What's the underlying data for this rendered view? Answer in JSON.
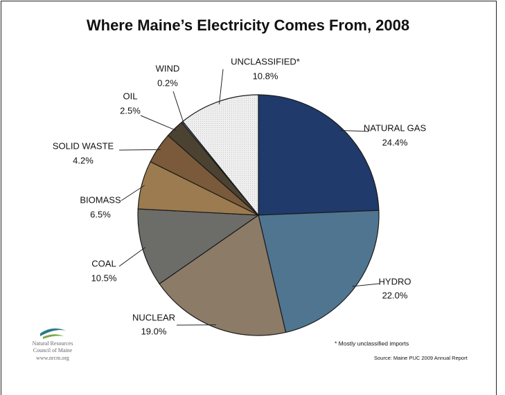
{
  "chart_data": {
    "type": "pie",
    "title": "Where Maine’s Electricity Comes From, 2008",
    "categories": [
      "NATURAL GAS",
      "HYDRO",
      "NUCLEAR",
      "COAL",
      "BIOMASS",
      "SOLID WASTE",
      "OIL",
      "WIND",
      "UNCLASSIFIED*"
    ],
    "values": [
      24.4,
      22.0,
      19.0,
      10.5,
      6.5,
      4.2,
      2.5,
      0.2,
      10.8
    ],
    "value_labels": [
      "24.4%",
      "22.0%",
      "19.0%",
      "10.5%",
      "6.5%",
      "4.2%",
      "2.5%",
      "0.2%",
      "10.8%"
    ],
    "colors": [
      "#1f3a6b",
      "#4f7590",
      "#8c7b66",
      "#6c6c68",
      "#9c7b50",
      "#7a5a3a",
      "#4b4232",
      "#6b7b8b",
      "#ececec"
    ],
    "footnote": "* Mostly unclassified imports",
    "source": "Source:  Maine PUC 2009 Annual Report",
    "logo_lines": [
      "Natural Resources",
      "Council of Maine",
      "www.nrcm.org"
    ]
  }
}
